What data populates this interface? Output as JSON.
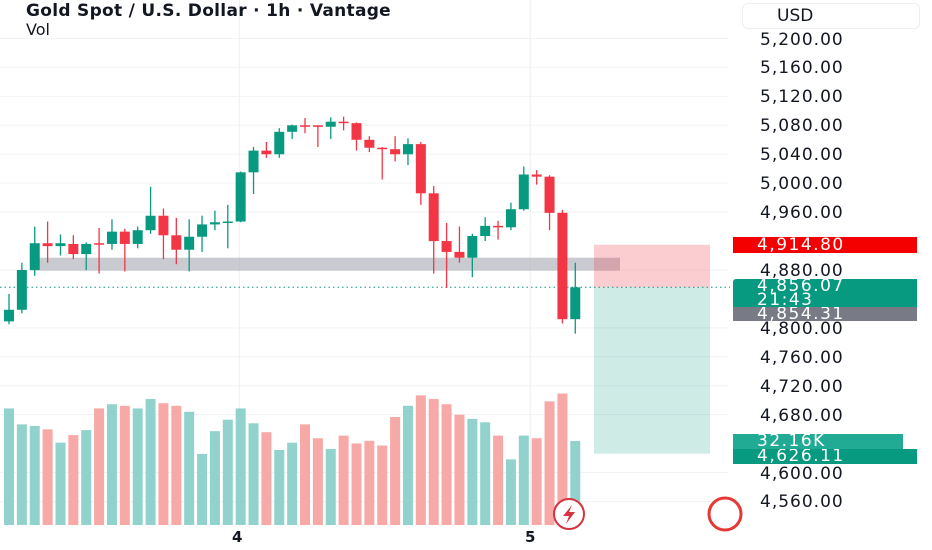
{
  "header": {
    "title": "Gold Spot / U.S. Dollar · 1h · Vantage",
    "volume_label": "Vol",
    "currency": "USD"
  },
  "price_axis": [
    "5,200.00",
    "5,160.00",
    "5,120.00",
    "5,080.00",
    "5,040.00",
    "5,000.00",
    "4,960.00",
    "4,880.00",
    "4,800.00",
    "4,760.00",
    "4,720.00",
    "4,680.00",
    "4,600.00",
    "4,560.00"
  ],
  "price_axis_values": [
    5200,
    5160,
    5120,
    5080,
    5040,
    5000,
    4960,
    4880,
    4800,
    4760,
    4720,
    4680,
    4600,
    4560
  ],
  "tags": {
    "stop": "4,914.80",
    "last": "4,856.07",
    "countdown": "21:43",
    "bid": "4,854.31",
    "volume": "32.16K",
    "target": "4,626.11"
  },
  "time_axis": [
    {
      "label": "4",
      "index": 17.9
    },
    {
      "label": "5",
      "index": 40.5
    }
  ],
  "colors": {
    "up": "#089981",
    "down": "#f23645",
    "up_vol": "#92d2cc",
    "down_vol": "#f7a9a7"
  },
  "chart_data": {
    "type": "candlestick",
    "ylim": [
      4540,
      5230
    ],
    "zone": [
      4879,
      4897
    ],
    "position": {
      "entry": 4856.07,
      "stop": 4914.8,
      "target": 4626.11
    },
    "candles": [
      [
        4809,
        4847,
        4805,
        4825
      ],
      [
        4825,
        4890,
        4820,
        4880
      ],
      [
        4880,
        4940,
        4872,
        4917
      ],
      [
        4917,
        4947,
        4890,
        4913
      ],
      [
        4913,
        4929,
        4900,
        4917
      ],
      [
        4916,
        4928,
        4895,
        4902
      ],
      [
        4902,
        4918,
        4880,
        4916
      ],
      [
        4917,
        4938,
        4875,
        4915
      ],
      [
        4916,
        4950,
        4908,
        4933
      ],
      [
        4933,
        4937,
        4878,
        4916
      ],
      [
        4916,
        4940,
        4910,
        4935
      ],
      [
        4935,
        4995,
        4930,
        4955
      ],
      [
        4955,
        4965,
        4895,
        4928
      ],
      [
        4928,
        4952,
        4888,
        4908
      ],
      [
        4908,
        4950,
        4878,
        4926
      ],
      [
        4926,
        4955,
        4905,
        4943
      ],
      [
        4943,
        4962,
        4935,
        4946
      ],
      [
        4946,
        4970,
        4910,
        4947
      ],
      [
        4947,
        5016,
        4946,
        5015
      ],
      [
        5015,
        5050,
        4985,
        5045
      ],
      [
        5045,
        5057,
        5035,
        5040
      ],
      [
        5040,
        5076,
        5035,
        5071
      ],
      [
        5071,
        5081,
        5061,
        5080
      ],
      [
        5080,
        5090,
        5069,
        5078
      ],
      [
        5080,
        5080,
        5050,
        5078
      ],
      [
        5078,
        5091,
        5061,
        5085
      ],
      [
        5085,
        5092,
        5073,
        5083
      ],
      [
        5083,
        5084,
        5045,
        5060
      ],
      [
        5060,
        5065,
        5043,
        5049
      ],
      [
        5049,
        5050,
        5005,
        5047
      ],
      [
        5047,
        5065,
        5030,
        5040
      ],
      [
        5040,
        5062,
        5025,
        5054
      ],
      [
        5054,
        5057,
        4970,
        4986
      ],
      [
        4986,
        4996,
        4875,
        4920
      ],
      [
        4920,
        4945,
        4855,
        4905
      ],
      [
        4905,
        4940,
        4890,
        4897
      ],
      [
        4897,
        4930,
        4870,
        4927
      ],
      [
        4927,
        4953,
        4920,
        4941
      ],
      [
        4941,
        4948,
        4922,
        4939
      ],
      [
        4939,
        4973,
        4935,
        4964
      ],
      [
        4964,
        5023,
        4962,
        5012
      ],
      [
        5012,
        5018,
        4998,
        5009
      ],
      [
        5009,
        5011,
        4935,
        4959
      ],
      [
        4959,
        4963,
        4806,
        4812
      ],
      [
        4812,
        4890,
        4792,
        4856
      ]
    ],
    "volume_k": [
      44.6,
      38.5,
      37.9,
      36.6,
      31.5,
      34.4,
      36.3,
      44.6,
      46.2,
      45.6,
      44.6,
      48.2,
      46.6,
      45.6,
      43.3,
      27.2,
      35.9,
      40.3,
      44.6,
      38.9,
      35.5,
      28.7,
      31.5,
      38.5,
      33.2,
      29.1,
      34.2,
      31.2,
      32.2,
      30.4,
      41.3,
      45.6,
      49.6,
      48.2,
      46.2,
      42.2,
      40.6,
      39.3,
      34.2,
      25.1,
      34.2,
      33.2,
      47.3,
      50.3,
      32.16
    ]
  }
}
